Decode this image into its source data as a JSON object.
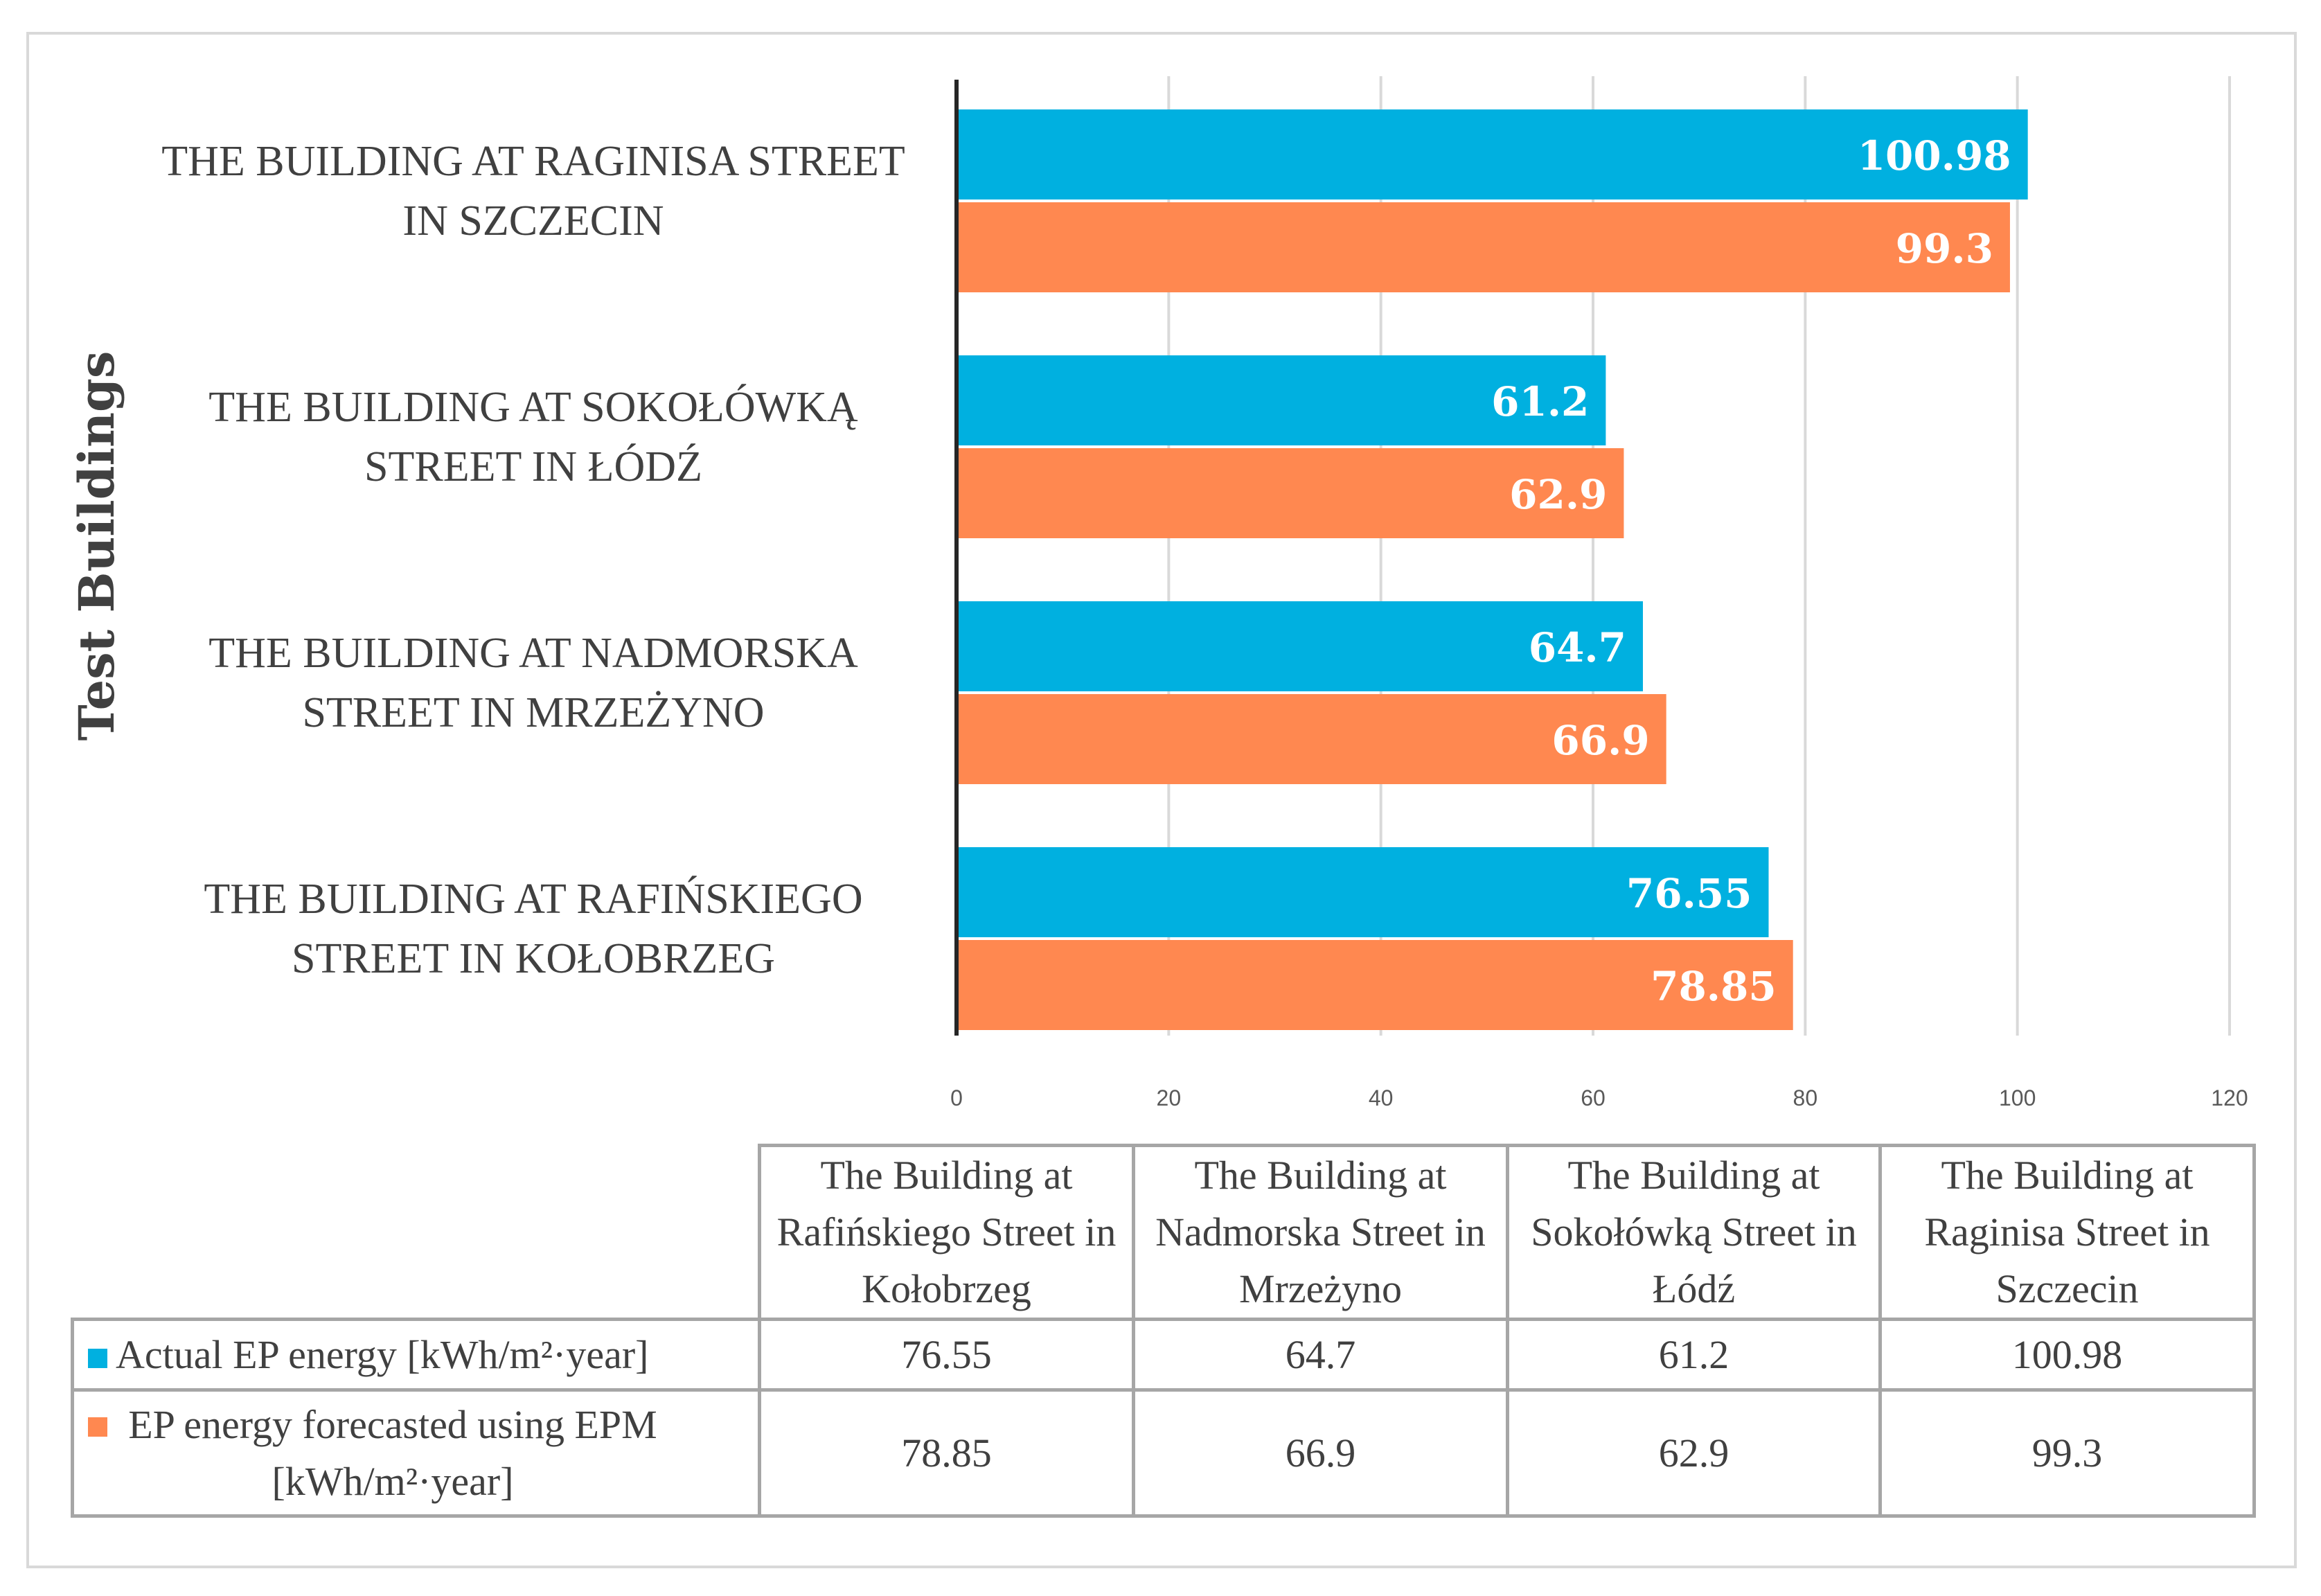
{
  "chart_data": {
    "type": "bar",
    "orientation": "horizontal",
    "title": "",
    "ylabel": "Test Buildings",
    "xlabel": "",
    "xlim": [
      0,
      120
    ],
    "xticks": [
      0,
      20,
      40,
      60,
      80,
      100,
      120
    ],
    "grid": true,
    "categories": [
      "THE BUILDING AT RAGINISA STREET IN SZCZECIN",
      "THE BUILDING AT SOKOŁÓWKĄ STREET IN ŁÓDŹ",
      "THE BUILDING AT NADMORSKA STREET IN MRZEŻYNO",
      "THE BUILDING AT RAFIŃSKIEGO STREET IN KOŁOBRZEG"
    ],
    "series": [
      {
        "name": "Actual EP energy [kWh/m²·year]",
        "color": "#00b0e0",
        "values": [
          100.98,
          61.2,
          64.7,
          76.55
        ],
        "labels": [
          "100.98",
          "61.2",
          "64.7",
          "76.55"
        ]
      },
      {
        "name": "EP energy forecasted using EPM [kWh/m²·year]",
        "color": "#ff8850",
        "values": [
          99.3,
          62.9,
          66.9,
          78.85
        ],
        "labels": [
          "99.3",
          "62.9",
          "66.9",
          "78.85"
        ]
      }
    ],
    "table": {
      "columns": [
        "The Building at Rafińskiego Street in Kołobrzeg",
        "The Building at Nadmorska Street in Mrzeżyno",
        "The Building at Sokołówką Street in Łódź",
        "The Building at Raginisa Street in Szczecin"
      ],
      "rows": [
        {
          "legend": "Actual EP energy [kWh/m²·year]",
          "color": "#00b0e0",
          "values": [
            "76.55",
            "64.7",
            "61.2",
            "100.98"
          ]
        },
        {
          "legend": "EP energy forecasted using EPM [kWh/m²·year]",
          "color": "#ff8850",
          "values": [
            "78.85",
            "66.9",
            "62.9",
            "99.3"
          ]
        }
      ]
    }
  }
}
